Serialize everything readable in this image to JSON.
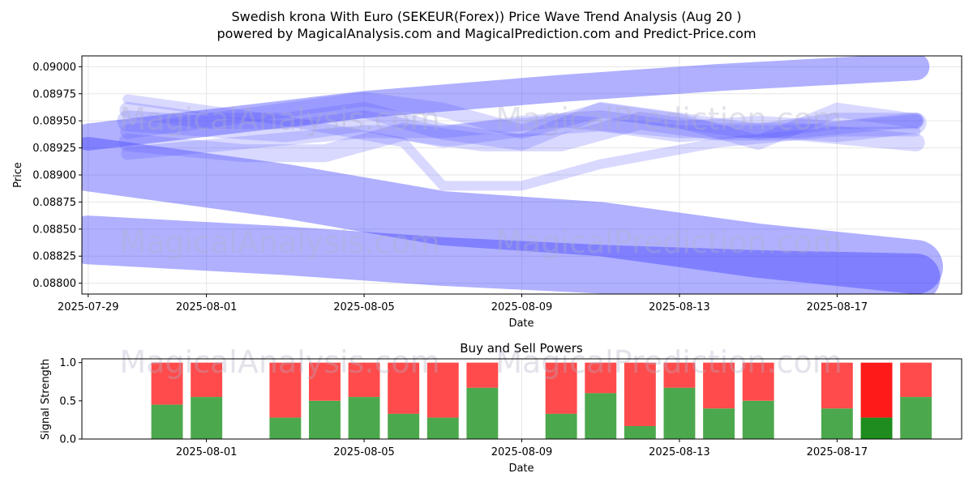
{
  "figure": {
    "title_line1": "Swedish krona With Euro (SEKEUR(Forex)) Price Wave Trend Analysis (Aug 20 )",
    "title_line2": "powered by MagicalAnalysis.com and MagicalPrediction.com and Predict-Price.com",
    "watermarks": [
      "MagicalAnalysis.com",
      "MagicalPrediction.com"
    ]
  },
  "chart_data": [
    {
      "type": "line",
      "xlabel": "Date",
      "ylabel": "Price",
      "x_ticks": [
        "2025-07-29",
        "2025-08-01",
        "2025-08-05",
        "2025-08-09",
        "2025-08-13",
        "2025-08-17"
      ],
      "y_ticks": [
        "0.08800",
        "0.08825",
        "0.08850",
        "0.08875",
        "0.08900",
        "0.08925",
        "0.08950",
        "0.08975",
        "0.09000"
      ],
      "ylim": [
        0.0879,
        0.0901
      ],
      "xlim": [
        "2025-07-29",
        "2025-08-20"
      ],
      "grid": true,
      "colors": {
        "band": "#3a3aff",
        "line": "#5050ff"
      },
      "wide_bands": [
        {
          "x": [
            "2025-07-29",
            "2025-08-05",
            "2025-08-10",
            "2025-08-14",
            "2025-08-19"
          ],
          "y": [
            0.08935,
            0.08965,
            0.0898,
            0.0899,
            0.09
          ],
          "width": 0.00025
        },
        {
          "x": [
            "2025-07-29",
            "2025-08-03",
            "2025-08-07",
            "2025-08-11",
            "2025-08-15",
            "2025-08-19"
          ],
          "y": [
            0.0891,
            0.08885,
            0.0886,
            0.0885,
            0.0883,
            0.08815
          ],
          "width": 0.0005
        },
        {
          "x": [
            "2025-07-29",
            "2025-08-03",
            "2025-08-07",
            "2025-08-11",
            "2025-08-15",
            "2025-08-19"
          ],
          "y": [
            0.0884,
            0.0883,
            0.0882,
            0.08813,
            0.08808,
            0.08805
          ],
          "width": 0.00045
        }
      ],
      "wave_lines": [
        {
          "x": [
            "2025-07-30",
            "2025-08-01",
            "2025-08-03",
            "2025-08-05",
            "2025-08-07",
            "2025-08-09",
            "2025-08-11",
            "2025-08-13",
            "2025-08-15",
            "2025-08-17",
            "2025-08-19"
          ],
          "y": [
            0.0895,
            0.08945,
            0.0894,
            0.0895,
            0.08935,
            0.08945,
            0.0895,
            0.0894,
            0.08945,
            0.0894,
            0.08948
          ]
        },
        {
          "x": [
            "2025-07-30",
            "2025-08-01",
            "2025-08-03",
            "2025-08-05",
            "2025-08-07",
            "2025-08-09",
            "2025-08-11",
            "2025-08-13",
            "2025-08-15",
            "2025-08-17",
            "2025-08-19"
          ],
          "y": [
            0.0896,
            0.0895,
            0.0895,
            0.0896,
            0.0894,
            0.0893,
            0.0896,
            0.0895,
            0.0894,
            0.0895,
            0.0895
          ]
        },
        {
          "x": [
            "2025-07-30",
            "2025-08-02",
            "2025-08-05",
            "2025-08-07",
            "2025-08-10",
            "2025-08-13",
            "2025-08-16",
            "2025-08-19"
          ],
          "y": [
            0.0892,
            0.0893,
            0.0894,
            0.0894,
            0.0895,
            0.0894,
            0.0894,
            0.0895
          ]
        },
        {
          "x": [
            "2025-07-30",
            "2025-08-02",
            "2025-08-04",
            "2025-08-06",
            "2025-08-08",
            "2025-08-10",
            "2025-08-12",
            "2025-08-14",
            "2025-08-16",
            "2025-08-19"
          ],
          "y": [
            0.0893,
            0.0892,
            0.0892,
            0.0894,
            0.0893,
            0.0893,
            0.0895,
            0.0894,
            0.0894,
            0.0893
          ]
        },
        {
          "x": [
            "2025-07-30",
            "2025-08-03",
            "2025-08-06",
            "2025-08-07",
            "2025-08-09",
            "2025-08-11",
            "2025-08-14",
            "2025-08-17",
            "2025-08-19"
          ],
          "y": [
            0.0897,
            0.0895,
            0.0893,
            0.0889,
            0.0889,
            0.0891,
            0.0893,
            0.0894,
            0.0894
          ]
        },
        {
          "x": [
            "2025-07-30",
            "2025-08-03",
            "2025-08-05",
            "2025-08-07",
            "2025-08-09",
            "2025-08-11",
            "2025-08-13",
            "2025-08-15",
            "2025-08-17",
            "2025-08-19"
          ],
          "y": [
            0.0894,
            0.0896,
            0.0897,
            0.0896,
            0.0894,
            0.0896,
            0.0895,
            0.0893,
            0.0896,
            0.0895
          ]
        }
      ]
    },
    {
      "type": "bar",
      "title": "Buy and Sell Powers",
      "xlabel": "Date",
      "ylabel": "Signal Strength",
      "x_ticks": [
        "2025-08-01",
        "2025-08-05",
        "2025-08-09",
        "2025-08-13",
        "2025-08-17"
      ],
      "y_ticks": [
        "0.0",
        "0.5",
        "1.0"
      ],
      "ylim": [
        0,
        1.05
      ],
      "xlim": [
        "2025-07-29",
        "2025-08-20"
      ],
      "colors": {
        "buy": "#4ca84c",
        "sell": "#ff4b4b",
        "buy_last": "#1e8c1e",
        "sell_last": "#ff1a1a"
      },
      "bars": [
        {
          "date": "2025-07-31",
          "buy": 0.45
        },
        {
          "date": "2025-08-01",
          "buy": 0.55
        },
        {
          "date": "2025-08-03",
          "buy": 0.28
        },
        {
          "date": "2025-08-04",
          "buy": 0.5
        },
        {
          "date": "2025-08-05",
          "buy": 0.55
        },
        {
          "date": "2025-08-06",
          "buy": 0.33
        },
        {
          "date": "2025-08-07",
          "buy": 0.28
        },
        {
          "date": "2025-08-08",
          "buy": 0.67
        },
        {
          "date": "2025-08-10",
          "buy": 0.33
        },
        {
          "date": "2025-08-11",
          "buy": 0.6
        },
        {
          "date": "2025-08-12",
          "buy": 0.17
        },
        {
          "date": "2025-08-13",
          "buy": 0.67
        },
        {
          "date": "2025-08-14",
          "buy": 0.4
        },
        {
          "date": "2025-08-15",
          "buy": 0.5
        },
        {
          "date": "2025-08-17",
          "buy": 0.4
        },
        {
          "date": "2025-08-18",
          "buy": 0.28,
          "highlight": true
        },
        {
          "date": "2025-08-19",
          "buy": 0.55
        }
      ]
    }
  ]
}
